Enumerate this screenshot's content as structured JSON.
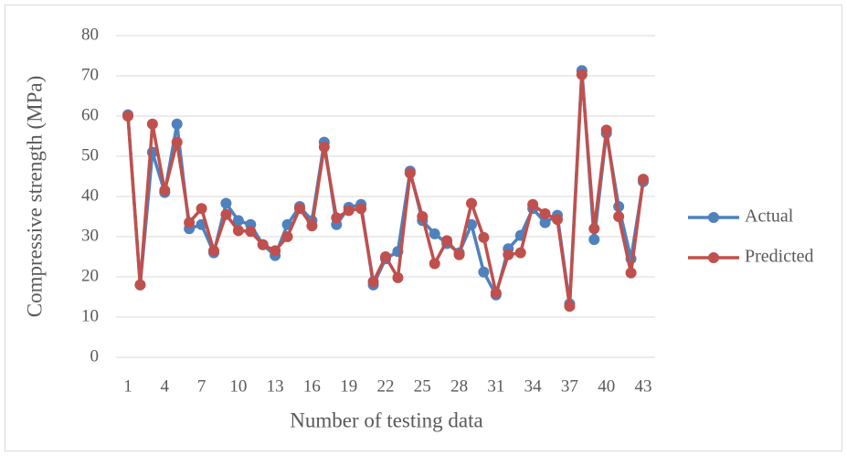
{
  "chart_data": {
    "type": "line",
    "ylabel": "Compressive strength (MPa)",
    "xlabel": "Number of testing data",
    "categories": [
      1,
      null,
      null,
      4,
      null,
      null,
      7,
      null,
      null,
      10,
      null,
      null,
      13,
      null,
      null,
      16,
      null,
      null,
      19,
      null,
      null,
      22,
      null,
      null,
      25,
      null,
      null,
      28,
      null,
      null,
      31,
      null,
      null,
      34,
      null,
      null,
      37,
      null,
      null,
      40,
      null,
      null,
      43
    ],
    "series": [
      {
        "name": "Actual",
        "color": "#4f81bd",
        "values": [
          60.3,
          18,
          51,
          41,
          58,
          32,
          33,
          26,
          38.3,
          34,
          33,
          28,
          25.3,
          33,
          37.5,
          34,
          53.5,
          33,
          37.3,
          38,
          18,
          24.5,
          26.3,
          46.3,
          34,
          30.7,
          28.3,
          26,
          33,
          21.2,
          15.5,
          27,
          30.3,
          37,
          33.5,
          35.3,
          13.3,
          71.3,
          29.3,
          55.7,
          37.5,
          24.5,
          43.7
        ]
      },
      {
        "name": "Predicted",
        "color": "#c0504d",
        "values": [
          60,
          18,
          58,
          41.5,
          53.5,
          33.5,
          37,
          26.5,
          35.5,
          31.5,
          31.3,
          28,
          26.5,
          30,
          37,
          32.7,
          52.3,
          34.7,
          36.5,
          37,
          18.8,
          25,
          19.8,
          45.8,
          35,
          23.3,
          29,
          25.5,
          38.3,
          29.8,
          16,
          25.5,
          26,
          38,
          35.7,
          34.3,
          12.7,
          70.3,
          32,
          56.5,
          35,
          21,
          44.3
        ]
      }
    ],
    "ylim": [
      0,
      80
    ],
    "yticks": [
      0,
      10,
      20,
      30,
      40,
      50,
      60,
      70,
      80
    ],
    "grid": true,
    "legend": "right"
  }
}
